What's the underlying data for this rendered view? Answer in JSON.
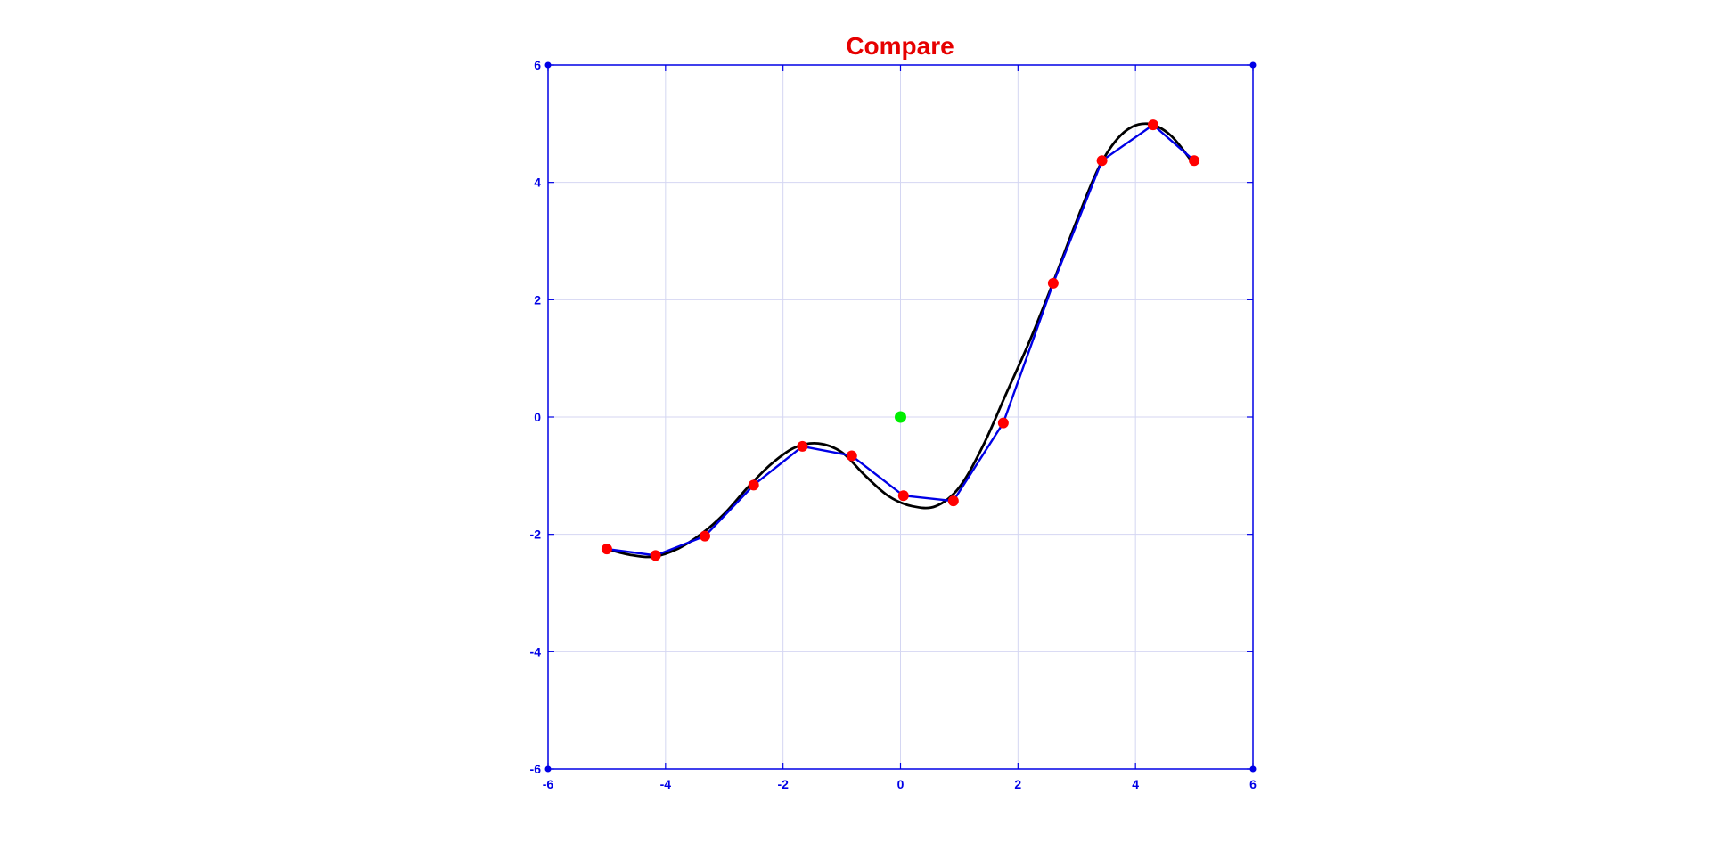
{
  "chart_data": {
    "type": "line",
    "title": "Compare",
    "xlabel": "",
    "ylabel": "",
    "xlim": [
      -6,
      6
    ],
    "ylim": [
      -6,
      6
    ],
    "x_ticks": [
      -6,
      -4,
      -2,
      0,
      2,
      4,
      6
    ],
    "y_ticks": [
      -6,
      -4,
      -2,
      0,
      2,
      4,
      6
    ],
    "x_tick_labels": [
      "-6",
      "-4",
      "-2",
      "0",
      "2",
      "4",
      "6"
    ],
    "y_tick_labels": [
      "-6",
      "-4",
      "-2",
      "0",
      "2",
      "4",
      "6"
    ],
    "grid": true,
    "series": [
      {
        "style": "smooth-curve",
        "color": "#000000",
        "x": [
          -5.0,
          -4.6,
          -4.2,
          -3.8,
          -3.4,
          -3.0,
          -2.6,
          -2.2,
          -1.8,
          -1.4,
          -1.0,
          -0.6,
          -0.2,
          0.2,
          0.6,
          1.0,
          1.4,
          1.8,
          2.2,
          2.6,
          3.0,
          3.4,
          3.8,
          4.2,
          4.6,
          5.0
        ],
        "y": [
          -2.25,
          -2.35,
          -2.38,
          -2.25,
          -2.0,
          -1.65,
          -1.2,
          -0.8,
          -0.52,
          -0.45,
          -0.6,
          -1.0,
          -1.35,
          -1.52,
          -1.52,
          -1.2,
          -0.5,
          0.4,
          1.3,
          2.3,
          3.35,
          4.3,
          4.85,
          5.0,
          4.8,
          4.3
        ]
      },
      {
        "style": "polyline-with-markers",
        "color": "#0000e6",
        "marker_color": "#ff0000",
        "x": [
          -5.0,
          -4.17,
          -3.33,
          -2.5,
          -1.67,
          -0.83,
          0.05,
          0.9,
          1.75,
          2.6,
          3.43,
          4.3,
          5.0
        ],
        "y": [
          -2.25,
          -2.36,
          -2.03,
          -1.16,
          -0.5,
          -0.66,
          -1.34,
          -1.43,
          -0.1,
          2.28,
          4.37,
          4.98,
          4.37
        ]
      },
      {
        "style": "point",
        "color": "#00ee00",
        "x": [
          0
        ],
        "y": [
          0
        ]
      }
    ]
  }
}
